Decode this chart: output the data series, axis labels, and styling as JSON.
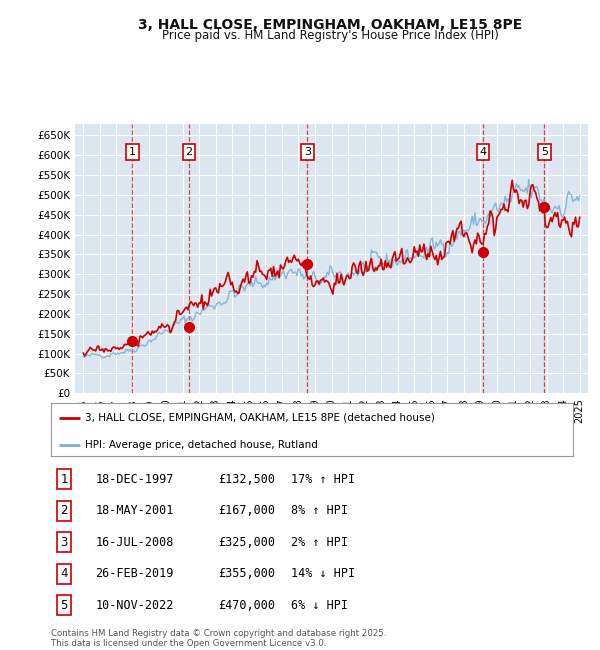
{
  "title": "3, HALL CLOSE, EMPINGHAM, OAKHAM, LE15 8PE",
  "subtitle": "Price paid vs. HM Land Registry's House Price Index (HPI)",
  "background_color": "#ffffff",
  "plot_bg_color": "#dce6f1",
  "grid_color": "#ffffff",
  "hpi_color": "#7bafd4",
  "price_color": "#cc0000",
  "ylim": [
    0,
    680000
  ],
  "yticks": [
    0,
    50000,
    100000,
    150000,
    200000,
    250000,
    300000,
    350000,
    400000,
    450000,
    500000,
    550000,
    600000,
    650000
  ],
  "sale_dates_x": [
    1997.96,
    2001.38,
    2008.54,
    2019.16,
    2022.86
  ],
  "sale_prices": [
    132500,
    167000,
    325000,
    355000,
    470000
  ],
  "sale_labels": [
    "1",
    "2",
    "3",
    "4",
    "5"
  ],
  "sale_info": [
    {
      "num": "1",
      "date": "18-DEC-1997",
      "price": "£132,500",
      "hpi": "17% ↑ HPI"
    },
    {
      "num": "2",
      "date": "18-MAY-2001",
      "price": "£167,000",
      "hpi": "8% ↑ HPI"
    },
    {
      "num": "3",
      "date": "16-JUL-2008",
      "price": "£325,000",
      "hpi": "2% ↑ HPI"
    },
    {
      "num": "4",
      "date": "26-FEB-2019",
      "price": "£355,000",
      "hpi": "14% ↓ HPI"
    },
    {
      "num": "5",
      "date": "10-NOV-2022",
      "price": "£470,000",
      "hpi": "6% ↓ HPI"
    }
  ],
  "legend_house_label": "3, HALL CLOSE, EMPINGHAM, OAKHAM, LE15 8PE (detached house)",
  "legend_hpi_label": "HPI: Average price, detached house, Rutland",
  "footnote": "Contains HM Land Registry data © Crown copyright and database right 2025.\nThis data is licensed under the Open Government Licence v3.0.",
  "xmin": 1994.5,
  "xmax": 2025.5
}
